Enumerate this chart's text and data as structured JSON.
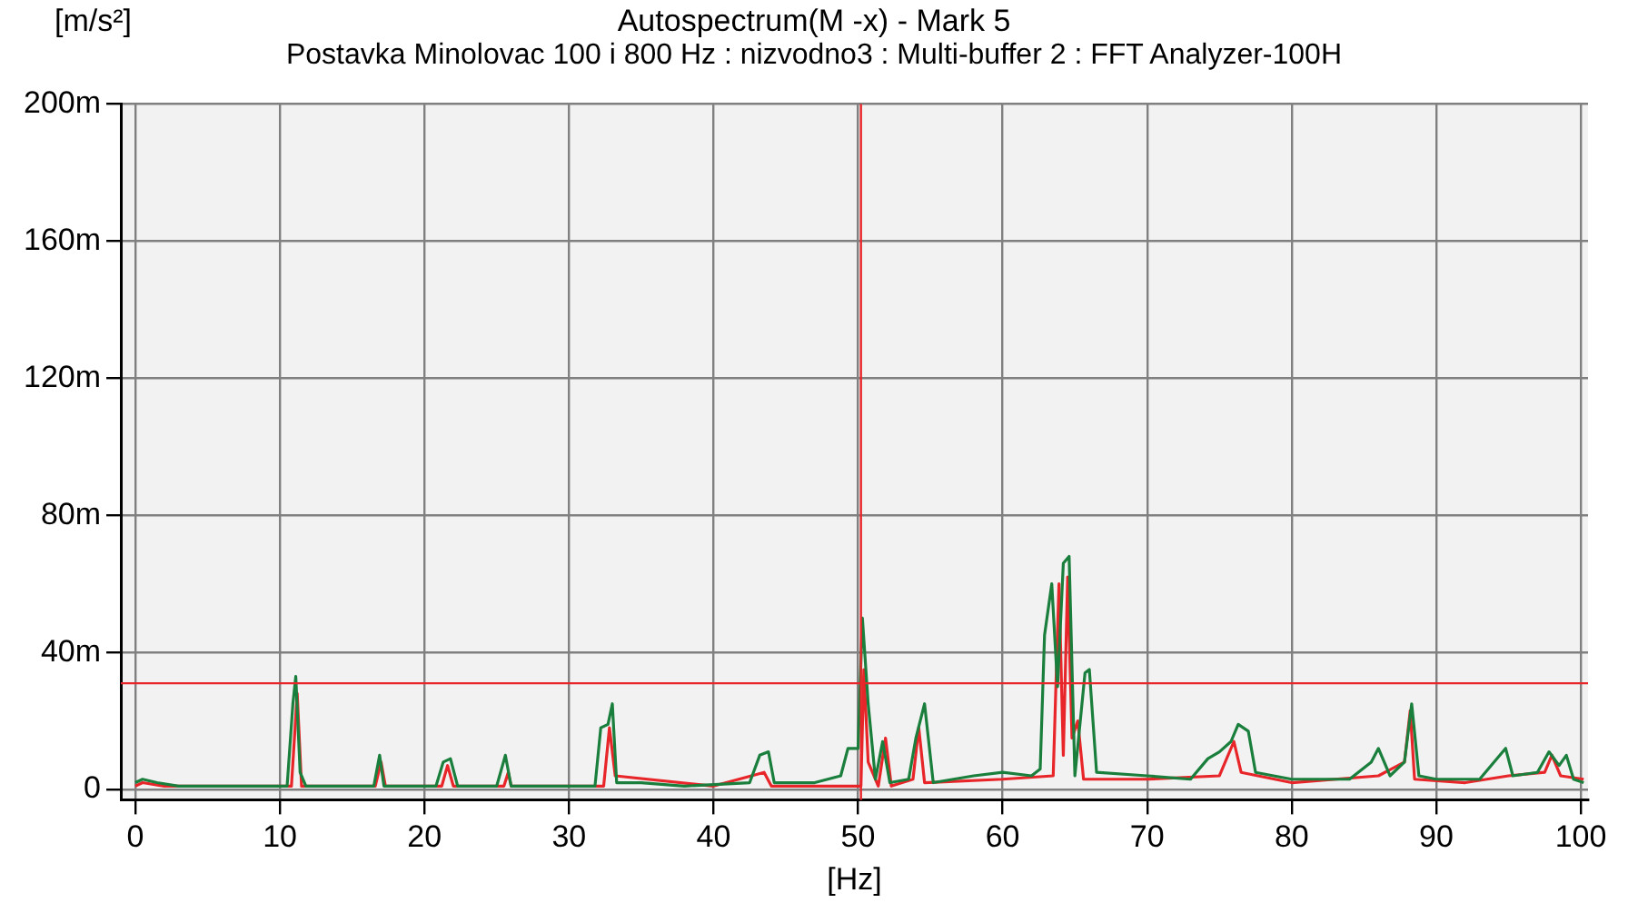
{
  "chart_data": {
    "type": "line",
    "title": "Autospectrum(M -x) - Mark 5",
    "subtitle": "Postavka Minolovac 100 i 800 Hz : nizvodno3 : Multi-buffer 2 : FFT Analyzer-100H",
    "ylabel": "[m/s²]",
    "xlabel": "[Hz]",
    "xlim": [
      -1,
      100.5
    ],
    "xticks": [
      0,
      10,
      20,
      30,
      40,
      50,
      60,
      70,
      80,
      90,
      100
    ],
    "ylim": [
      -3,
      200
    ],
    "yticks": [
      {
        "value": 0,
        "label": "0"
      },
      {
        "value": 40,
        "label": "40m"
      },
      {
        "value": 80,
        "label": "80m"
      },
      {
        "value": 120,
        "label": "120m"
      },
      {
        "value": 160,
        "label": "160m"
      },
      {
        "value": 200,
        "label": "200m"
      }
    ],
    "grid": true,
    "legend": false,
    "marker": "none",
    "line_style": "solid",
    "series": [
      {
        "color": "#1a7f3c",
        "x": [
          0,
          0.5,
          1.5,
          3,
          10.5,
          10.9,
          11.1,
          11.4,
          11.8,
          16.5,
          16.9,
          17.2,
          20.8,
          21.3,
          21.8,
          22.3,
          25,
          25.6,
          26,
          31.8,
          32.2,
          32.7,
          33,
          33.3,
          35,
          38,
          42.5,
          43.2,
          43.8,
          44.2,
          47,
          48.8,
          49.3,
          50,
          50.3,
          50.7,
          51.2,
          51.7,
          52.2,
          53.5,
          54,
          54.6,
          55.2,
          58,
          60,
          62,
          62.6,
          62.9,
          63.4,
          63.8,
          64.2,
          64.6,
          65,
          65.7,
          66,
          66.5,
          70,
          73,
          74.2,
          75,
          75.8,
          76.3,
          77,
          77.5,
          80,
          84,
          85.5,
          86,
          86.8,
          87.8,
          88.3,
          88.8,
          90,
          93,
          94.8,
          95.3,
          97,
          97.8,
          98.5,
          99,
          99.5,
          100.2
        ],
        "values": [
          2,
          3,
          2,
          1,
          1,
          25,
          33,
          5,
          1,
          1,
          10,
          1,
          1,
          8,
          9,
          1,
          1,
          10,
          1,
          1,
          18,
          19,
          25,
          2,
          2,
          1,
          2,
          10,
          11,
          2,
          2,
          4,
          12,
          12,
          50,
          25,
          3,
          14,
          2,
          3,
          15,
          25,
          2,
          4,
          5,
          4,
          6,
          45,
          60,
          30,
          66,
          68,
          4,
          34,
          35,
          5,
          4,
          3,
          9,
          11,
          14,
          19,
          17,
          5,
          3,
          3,
          8,
          12,
          4,
          8,
          25,
          4,
          3,
          3,
          12,
          4,
          5,
          11,
          7,
          10,
          3,
          2
        ]
      },
      {
        "color": "#e8262a",
        "x": [
          0,
          0.5,
          2,
          10.8,
          11.2,
          11.5,
          16.6,
          17,
          17.3,
          21.2,
          21.6,
          22,
          25.5,
          25.8,
          26,
          32.4,
          32.8,
          33.2,
          40,
          43.5,
          44,
          49,
          50.2,
          50.4,
          50.7,
          51.4,
          51.9,
          52.3,
          53.8,
          54.2,
          54.6,
          60,
          63.5,
          63.9,
          64.2,
          64.5,
          64.8,
          65.2,
          65.6,
          70,
          75,
          76,
          76.5,
          80,
          86,
          87.8,
          88.2,
          88.5,
          92,
          95,
          97.5,
          98,
          98.6,
          100.2
        ],
        "values": [
          1,
          2,
          1,
          1,
          28,
          1,
          1,
          8,
          1,
          1,
          7,
          1,
          1,
          5,
          1,
          1,
          18,
          4,
          1,
          5,
          1,
          1,
          1,
          35,
          8,
          1,
          15,
          1,
          3,
          18,
          2,
          3,
          4,
          60,
          10,
          62,
          15,
          20,
          3,
          3,
          4,
          14,
          5,
          2,
          4,
          8,
          23,
          3,
          2,
          4,
          5,
          10,
          4,
          3
        ]
      }
    ],
    "ref_lines": [
      {
        "axis": "y",
        "value": 31,
        "color": "#e8262a"
      },
      {
        "axis": "x",
        "value": 50.2,
        "color": "#e8262a"
      }
    ]
  }
}
